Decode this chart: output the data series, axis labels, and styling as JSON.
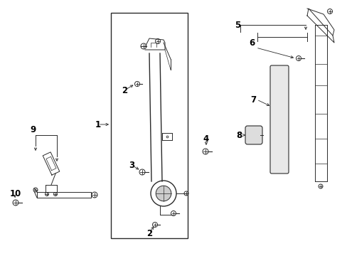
{
  "bg_color": "#ffffff",
  "line_color": "#2a2a2a",
  "label_color": "#000000",
  "fig_width": 4.89,
  "fig_height": 3.6,
  "dpi": 100
}
